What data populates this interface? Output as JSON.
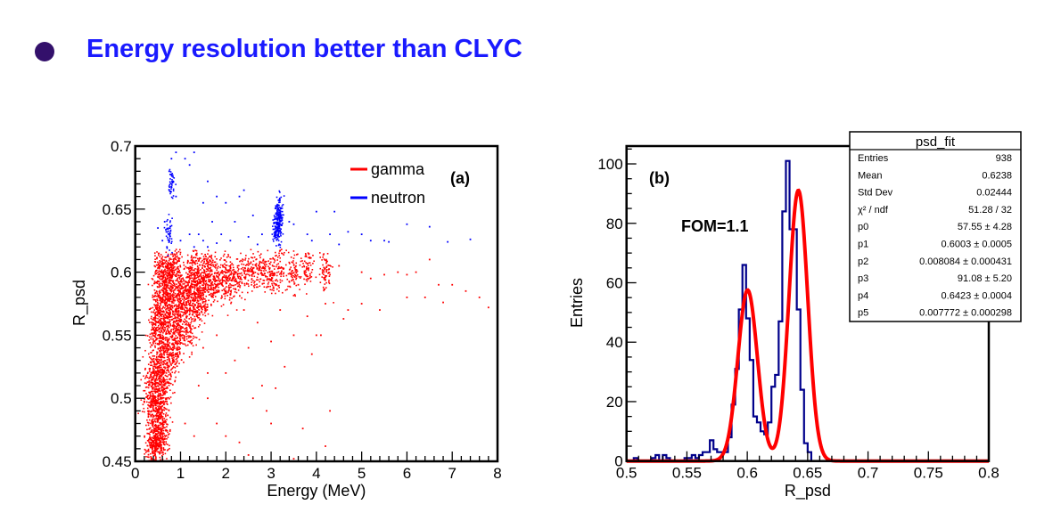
{
  "slide": {
    "headline": "Energy resolution better than CLYC",
    "bullet_color": "#33106b",
    "headline_color": "#1a1aff"
  },
  "chart_data": [
    {
      "type": "scatter",
      "panel_label": "(a)",
      "xlabel": "Energy (MeV)",
      "ylabel": "R_psd",
      "xlim": [
        0,
        8
      ],
      "ylim": [
        0.45,
        0.7
      ],
      "xticks": [
        "0",
        "1",
        "2",
        "3",
        "4",
        "5",
        "6",
        "7",
        "8"
      ],
      "yticks": [
        "0.45",
        "0.5",
        "0.55",
        "0.6",
        "0.65",
        "0.7"
      ],
      "legend_placement": "top-right",
      "series": [
        {
          "name": "gamma",
          "color": "#ff0000",
          "dense_points": [
            [
              0.35,
              0.46
            ],
            [
              0.4,
              0.47
            ],
            [
              0.45,
              0.46
            ],
            [
              0.5,
              0.47
            ],
            [
              0.4,
              0.49
            ],
            [
              0.5,
              0.49
            ],
            [
              0.45,
              0.51
            ],
            [
              0.55,
              0.5
            ],
            [
              0.5,
              0.52
            ],
            [
              0.6,
              0.52
            ],
            [
              0.55,
              0.54
            ],
            [
              0.65,
              0.54
            ],
            [
              0.6,
              0.56
            ],
            [
              0.7,
              0.56
            ],
            [
              0.65,
              0.58
            ],
            [
              0.75,
              0.57
            ],
            [
              0.7,
              0.59
            ],
            [
              0.85,
              0.58
            ],
            [
              0.8,
              0.6
            ],
            [
              0.6,
              0.6
            ],
            [
              0.5,
              0.58
            ],
            [
              0.4,
              0.55
            ],
            [
              0.35,
              0.52
            ],
            [
              0.3,
              0.5
            ],
            [
              0.9,
              0.56
            ],
            [
              1.0,
              0.57
            ],
            [
              1.0,
              0.59
            ],
            [
              1.1,
              0.58
            ],
            [
              1.2,
              0.575
            ],
            [
              1.2,
              0.595
            ],
            [
              1.3,
              0.585
            ],
            [
              1.4,
              0.59
            ],
            [
              1.5,
              0.58
            ],
            [
              1.5,
              0.6
            ],
            [
              1.7,
              0.59
            ],
            [
              1.8,
              0.595
            ],
            [
              2.0,
              0.59
            ],
            [
              2.0,
              0.6
            ],
            [
              2.2,
              0.595
            ],
            [
              2.4,
              0.6
            ],
            [
              2.6,
              0.598
            ],
            [
              2.8,
              0.6
            ],
            [
              3.0,
              0.6
            ],
            [
              3.2,
              0.602
            ],
            [
              3.5,
              0.6
            ],
            [
              3.8,
              0.602
            ],
            [
              4.2,
              0.6
            ],
            [
              0.9,
              0.54
            ],
            [
              1.0,
              0.55
            ],
            [
              0.8,
              0.53
            ],
            [
              0.7,
              0.51
            ],
            [
              0.6,
              0.49
            ],
            [
              0.55,
              0.47
            ],
            [
              0.65,
              0.47
            ],
            [
              1.2,
              0.555
            ],
            [
              1.4,
              0.57
            ],
            [
              0.9,
              0.61
            ],
            [
              1.3,
              0.605
            ],
            [
              1.6,
              0.605
            ],
            [
              0.5,
              0.6
            ],
            [
              0.45,
              0.56
            ],
            [
              0.75,
              0.6
            ]
          ],
          "points": [
            [
              4.5,
              0.605
            ],
            [
              5.0,
              0.6
            ],
            [
              5.2,
              0.595
            ],
            [
              5.5,
              0.598
            ],
            [
              5.8,
              0.6
            ],
            [
              6.0,
              0.598
            ],
            [
              6.2,
              0.6
            ],
            [
              6.5,
              0.61
            ],
            [
              6.7,
              0.59
            ],
            [
              7.0,
              0.59
            ],
            [
              7.3,
              0.585
            ],
            [
              7.6,
              0.58
            ],
            [
              7.8,
              0.572
            ],
            [
              6.0,
              0.58
            ],
            [
              6.4,
              0.58
            ],
            [
              6.8,
              0.576
            ],
            [
              5.4,
              0.57
            ],
            [
              4.7,
              0.57
            ],
            [
              4.2,
              0.575
            ],
            [
              3.8,
              0.565
            ],
            [
              4.0,
              0.55
            ],
            [
              3.5,
              0.55
            ],
            [
              3.0,
              0.545
            ],
            [
              2.5,
              0.54
            ],
            [
              2.2,
              0.53
            ],
            [
              2.0,
              0.52
            ],
            [
              1.6,
              0.5
            ],
            [
              1.8,
              0.48
            ],
            [
              2.8,
              0.51
            ],
            [
              2.6,
              0.5
            ],
            [
              3.1,
              0.508
            ],
            [
              3.0,
              0.48
            ],
            [
              2.9,
              0.49
            ],
            [
              4.3,
              0.49
            ],
            [
              4.2,
              0.462
            ],
            [
              3.7,
              0.476
            ],
            [
              2.3,
              0.465
            ],
            [
              1.3,
              0.47
            ],
            [
              1.1,
              0.48
            ],
            [
              2.0,
              0.47
            ],
            [
              3.3,
              0.525
            ],
            [
              3.9,
              0.535
            ],
            [
              4.1,
              0.55
            ],
            [
              4.6,
              0.563
            ],
            [
              5.0,
              0.575
            ],
            [
              3.6,
              0.59
            ],
            [
              1.6,
              0.52
            ],
            [
              1.4,
              0.51
            ],
            [
              1.5,
              0.54
            ],
            [
              1.8,
              0.55
            ],
            [
              2.4,
              0.57
            ],
            [
              2.7,
              0.56
            ],
            [
              3.2,
              0.57
            ],
            [
              0.3,
              0.49
            ],
            [
              1.2,
              0.45
            ],
            [
              2.5,
              0.455
            ],
            [
              3.5,
              0.452
            ]
          ]
        },
        {
          "name": "neutron",
          "color": "#0000ff",
          "dense_points": [
            [
              3.15,
              0.645
            ],
            [
              3.2,
              0.64
            ],
            [
              3.1,
              0.635
            ],
            [
              3.2,
              0.65
            ],
            [
              3.15,
              0.63
            ],
            [
              0.75,
              0.63
            ],
            [
              0.8,
              0.67
            ]
          ],
          "points": [
            [
              0.65,
              0.64
            ],
            [
              0.7,
              0.62
            ],
            [
              0.6,
              0.625
            ],
            [
              0.8,
              0.69
            ],
            [
              0.9,
              0.695
            ],
            [
              0.75,
              0.68
            ],
            [
              1.1,
              0.69
            ],
            [
              1.3,
              0.695
            ],
            [
              1.2,
              0.685
            ],
            [
              1.6,
              0.672
            ],
            [
              1.4,
              0.63
            ],
            [
              1.5,
              0.625
            ],
            [
              1.7,
              0.64
            ],
            [
              1.8,
              0.66
            ],
            [
              2.0,
              0.655
            ],
            [
              2.2,
              0.64
            ],
            [
              2.4,
              0.665
            ],
            [
              2.6,
              0.645
            ],
            [
              2.8,
              0.63
            ],
            [
              1.9,
              0.63
            ],
            [
              1.2,
              0.63
            ],
            [
              1.0,
              0.625
            ],
            [
              1.3,
              0.62
            ],
            [
              1.6,
              0.62
            ],
            [
              2.1,
              0.625
            ],
            [
              2.5,
              0.628
            ],
            [
              3.5,
              0.638
            ],
            [
              3.4,
              0.64
            ],
            [
              3.8,
              0.63
            ],
            [
              4.0,
              0.648
            ],
            [
              4.4,
              0.648
            ],
            [
              4.3,
              0.63
            ],
            [
              4.7,
              0.632
            ],
            [
              5.0,
              0.63
            ],
            [
              5.2,
              0.625
            ],
            [
              5.5,
              0.625
            ],
            [
              6.0,
              0.638
            ],
            [
              6.5,
              0.636
            ],
            [
              6.9,
              0.624
            ],
            [
              7.4,
              0.626
            ],
            [
              3.9,
              0.625
            ],
            [
              1.5,
              0.655
            ],
            [
              2.3,
              0.66
            ],
            [
              0.5,
              0.635
            ],
            [
              0.9,
              0.66
            ],
            [
              1.8,
              0.623
            ],
            [
              2.7,
              0.622
            ],
            [
              4.5,
              0.622
            ],
            [
              5.6,
              0.624
            ]
          ]
        }
      ]
    },
    {
      "type": "histogram",
      "panel_label": "(b)",
      "annotation": "FOM=1.1",
      "xlabel": "R_psd",
      "ylabel": "Entries",
      "xlim": [
        0.5,
        0.8
      ],
      "ylim": [
        0,
        106
      ],
      "xticks": [
        "0.5",
        "0.55",
        "0.6",
        "0.65",
        "0.7",
        "0.75",
        "0.8"
      ],
      "yticks": [
        "0",
        "20",
        "40",
        "60",
        "80",
        "100"
      ],
      "bin_width": 0.003,
      "bin_start": 0.5,
      "counts": [
        0,
        0,
        1,
        0,
        0,
        0,
        0,
        1,
        2,
        0,
        2,
        1,
        0,
        0,
        0,
        0,
        1,
        1,
        2,
        1,
        2,
        3,
        3,
        7,
        4,
        3,
        3,
        3,
        8,
        19,
        31,
        51,
        66,
        48,
        34,
        15,
        13,
        10,
        9,
        13,
        25,
        29,
        47,
        84,
        101,
        78,
        78,
        51,
        24,
        6,
        3,
        0,
        0,
        0,
        0,
        0,
        0,
        0,
        0,
        0,
        0,
        0,
        0,
        0,
        0,
        0,
        0,
        0,
        0,
        0,
        0,
        0,
        0,
        0,
        0,
        0,
        0,
        0,
        0,
        0,
        0,
        0,
        0,
        0,
        0,
        0,
        0,
        0,
        0,
        0,
        0,
        0,
        0,
        0,
        0,
        0,
        0,
        0,
        0,
        0
      ],
      "hist_color": "#00008b",
      "fit_color": "#ff0000",
      "fit_params": [
        57.55,
        0.6003,
        0.008084,
        91.08,
        0.6423,
        0.007772
      ],
      "stats_box": {
        "title": "psd_fit",
        "rows": [
          {
            "label": "Entries",
            "value": "938"
          },
          {
            "label": "Mean",
            "value": "0.6238"
          },
          {
            "label": "Std Dev",
            "value": "0.02444"
          },
          {
            "label": "χ² / ndf",
            "value": "51.28 / 32"
          },
          {
            "label": "p0",
            "value": "57.55 ± 4.28"
          },
          {
            "label": "p1",
            "value": "0.6003 ± 0.0005"
          },
          {
            "label": "p2",
            "value": "0.008084 ± 0.000431"
          },
          {
            "label": "p3",
            "value": "91.08 ± 5.20"
          },
          {
            "label": "p4",
            "value": "0.6423 ± 0.0004"
          },
          {
            "label": "p5",
            "value": "0.007772 ± 0.000298"
          }
        ]
      }
    }
  ]
}
